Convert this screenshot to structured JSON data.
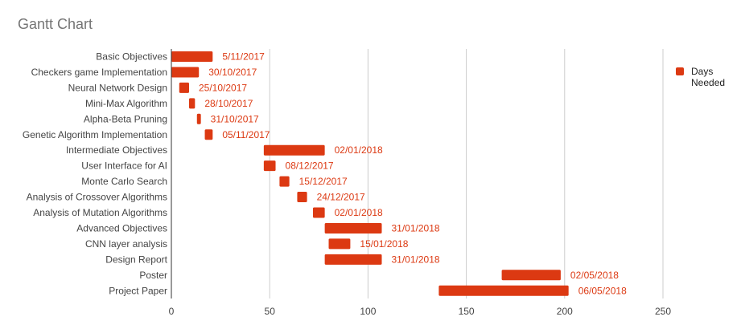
{
  "colors": {
    "bar": "#dc3912",
    "bar_label": "#dc3912",
    "axis_text": "#444444",
    "gridline": "#cccccc",
    "axis_line": "#333333",
    "title": "#757575"
  },
  "chart_data": {
    "type": "bar",
    "orientation": "horizontal",
    "stacked": true,
    "title": "Gantt Chart",
    "xlabel": "",
    "ylabel": "",
    "xlim": [
      0,
      250
    ],
    "x_ticks": [
      0,
      50,
      100,
      150,
      200,
      250
    ],
    "grid": true,
    "legend_position": "right",
    "categories": [
      "Basic Objectives",
      "Checkers game Implementation",
      "Neural Network Design",
      "Mini-Max Algorithm",
      "Alpha-Beta Pruning",
      "Genetic Algorithm Implementation",
      "Intermediate Objectives",
      "User Interface for AI",
      "Monte Carlo Search",
      "Analysis of Crossover Algorithms",
      "Analysis of Mutation Algorithms",
      "Advanced Objectives",
      "CNN layer analysis",
      "Design Report",
      "Poster",
      "Project Paper"
    ],
    "start_offsets": [
      0,
      0,
      4,
      9,
      13,
      17,
      47,
      47,
      55,
      64,
      72,
      78,
      80,
      78,
      168,
      136
    ],
    "series": [
      {
        "name": "Days Needed",
        "values": [
          21,
          14,
          5,
          3,
          2,
          4,
          31,
          6,
          5,
          5,
          6,
          29,
          11,
          29,
          30,
          66
        ]
      }
    ],
    "data_labels": [
      "5/11/2017",
      "30/10/2017",
      "25/10/2017",
      "28/10/2017",
      "31/10/2017",
      "05/11/2017",
      "02/01/2018",
      "08/12/2017",
      "15/12/2017",
      "24/12/2017",
      "02/01/2018",
      "31/01/2018",
      "15/01/2018",
      "31/01/2018",
      "02/05/2018",
      "06/05/2018"
    ]
  }
}
